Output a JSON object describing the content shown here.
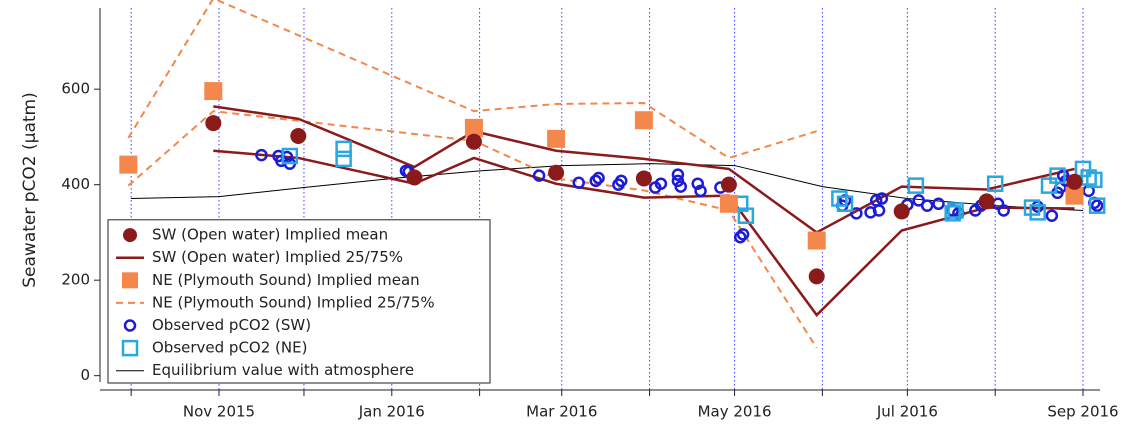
{
  "chart_data": {
    "type": "scatter",
    "ylabel": "Seawater pCO2 (µatm)",
    "ylim": [
      -30,
      770
    ],
    "yticks": [
      0,
      200,
      400,
      600
    ],
    "xlim": [
      "2015-09-20",
      "2016-09-07"
    ],
    "xticks": [
      {
        "value": "2015-10-01",
        "label": null
      },
      {
        "value": "2015-11-01",
        "label": "Nov 2015"
      },
      {
        "value": "2015-12-01",
        "label": null
      },
      {
        "value": "2016-01-01",
        "label": "Jan 2016"
      },
      {
        "value": "2016-02-01",
        "label": null
      },
      {
        "value": "2016-03-01",
        "label": "Mar 2016"
      },
      {
        "value": "2016-04-01",
        "label": null
      },
      {
        "value": "2016-05-01",
        "label": "May 2016"
      },
      {
        "value": "2016-06-01",
        "label": null
      },
      {
        "value": "2016-07-01",
        "label": "Jul 2016"
      },
      {
        "value": "2016-08-01",
        "label": null
      },
      {
        "value": "2016-09-01",
        "label": "Sep 2016"
      }
    ],
    "grid": true,
    "legend": "lower left",
    "series": [
      {
        "name": "SW (Open water) Implied mean",
        "color": "#8b1a1a",
        "style": "circle",
        "x": [
          "2015-10-30",
          "2015-11-29",
          "2016-01-09",
          "2016-01-30",
          "2016-02-28",
          "2016-03-30",
          "2016-04-29",
          "2016-05-30",
          "2016-06-29",
          "2016-07-29",
          "2016-08-29"
        ],
        "values": [
          529,
          502,
          415,
          490,
          425,
          413,
          400,
          208,
          344,
          365,
          406
        ]
      },
      {
        "name": "SW (Open water) Implied 25/75%",
        "color": "#8b1a1a",
        "style": "line",
        "x": [
          "2015-10-30",
          "2015-11-29",
          "2016-01-09",
          "2016-01-30",
          "2016-02-28",
          "2016-03-30",
          "2016-04-29",
          "2016-05-30",
          "2016-06-29",
          "2016-07-29",
          "2016-08-29"
        ],
        "values": [
          564,
          538,
          437,
          512,
          471,
          454,
          433,
          300,
          396,
          390,
          433
        ],
        "values2": [
          471,
          456,
          402,
          456,
          402,
          373,
          377,
          127,
          304,
          352,
          350
        ]
      },
      {
        "name": "NE (Plymouth Sound) Implied mean",
        "color": "#f4874b",
        "style": "square",
        "x": [
          "2015-09-30",
          "2015-10-30",
          "2016-01-30",
          "2016-02-28",
          "2016-03-30",
          "2016-04-29",
          "2016-05-30",
          "2016-08-29"
        ],
        "values": [
          442,
          596,
          519,
          496,
          535,
          360,
          283,
          377
        ]
      },
      {
        "name": "NE (Plymouth Sound) Implied 25/75%",
        "color": "#f4874b",
        "style": "dashed",
        "x": [
          "2015-09-30",
          "2015-10-30",
          "2016-01-30",
          "2016-02-28",
          "2016-03-30",
          "2016-04-29",
          "2016-05-30"
        ],
        "values": [
          498,
          790,
          554,
          569,
          571,
          456,
          512
        ],
        "values2": [
          398,
          554,
          492,
          413,
          388,
          346,
          58
        ]
      },
      {
        "name": "Observed pCO2 (SW)",
        "color": "#1c1cd6",
        "style": "open-circle",
        "x": [
          "2015-11-16",
          "2015-11-22",
          "2015-11-23",
          "2015-11-25",
          "2015-11-26",
          "2016-01-06",
          "2016-01-07",
          "2016-02-22",
          "2016-03-07",
          "2016-03-13",
          "2016-03-14",
          "2016-03-21",
          "2016-03-22",
          "2016-04-03",
          "2016-04-05",
          "2016-04-11",
          "2016-04-11",
          "2016-04-12",
          "2016-04-18",
          "2016-04-19",
          "2016-04-26",
          "2016-05-03",
          "2016-05-04",
          "2016-06-08",
          "2016-06-09",
          "2016-06-13",
          "2016-06-18",
          "2016-06-20",
          "2016-06-21",
          "2016-06-22",
          "2016-07-01",
          "2016-07-05",
          "2016-07-08",
          "2016-07-12",
          "2016-07-17",
          "2016-07-19",
          "2016-07-25",
          "2016-07-27",
          "2016-08-02",
          "2016-08-04",
          "2016-08-16",
          "2016-08-21",
          "2016-08-23",
          "2016-08-24",
          "2016-08-25",
          "2016-08-26",
          "2016-08-28",
          "2016-08-30",
          "2016-09-03",
          "2016-09-05",
          "2016-09-06"
        ],
        "values": [
          462,
          460,
          450,
          458,
          444,
          429,
          427,
          419,
          404,
          408,
          414,
          400,
          408,
          394,
          402,
          421,
          408,
          396,
          402,
          387,
          394,
          290,
          296,
          356,
          367,
          340,
          342,
          367,
          346,
          371,
          358,
          367,
          356,
          360,
          346,
          340,
          346,
          356,
          360,
          346,
          354,
          335,
          383,
          394,
          419,
          408,
          396,
          381,
          387,
          362,
          356
        ]
      },
      {
        "name": "Observed pCO2 (NE)",
        "color": "#29a8e0",
        "style": "open-square",
        "x": [
          "2015-11-26",
          "2015-12-15",
          "2015-12-15",
          "2016-05-03",
          "2016-05-05",
          "2016-06-07",
          "2016-06-09",
          "2016-07-04",
          "2016-07-17",
          "2016-07-18",
          "2016-08-01",
          "2016-08-14",
          "2016-08-16",
          "2016-08-20",
          "2016-08-23",
          "2016-09-01",
          "2016-09-03",
          "2016-09-05",
          "2016-09-06"
        ],
        "values": [
          460,
          475,
          454,
          360,
          335,
          371,
          360,
          398,
          340,
          346,
          402,
          352,
          342,
          398,
          419,
          433,
          415,
          410,
          356
        ]
      },
      {
        "name": "Equilibrium value with atmosphere",
        "color": "#000000",
        "style": "thin-line",
        "x": [
          "2015-10-01",
          "2015-11-01",
          "2015-12-01",
          "2016-01-01",
          "2016-02-01",
          "2016-03-01",
          "2016-04-01",
          "2016-05-01",
          "2016-06-01",
          "2016-07-01",
          "2016-08-01",
          "2016-09-01"
        ],
        "values": [
          371,
          375,
          394,
          413,
          429,
          440,
          444,
          440,
          396,
          371,
          356,
          346
        ]
      }
    ]
  }
}
